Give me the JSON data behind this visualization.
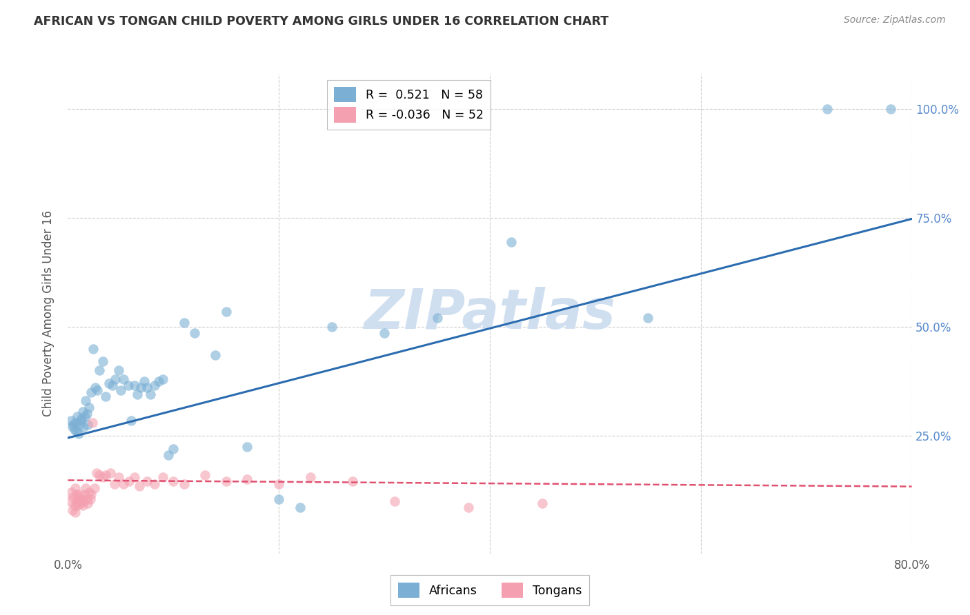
{
  "title": "AFRICAN VS TONGAN CHILD POVERTY AMONG GIRLS UNDER 16 CORRELATION CHART",
  "source": "Source: ZipAtlas.com",
  "ylabel": "Child Poverty Among Girls Under 16",
  "xlim": [
    0.0,
    0.8
  ],
  "ylim": [
    -0.02,
    1.08
  ],
  "african_R": 0.521,
  "african_N": 58,
  "tongan_R": -0.036,
  "tongan_N": 52,
  "african_color": "#7bafd4",
  "tongan_color": "#f4a0b0",
  "african_line_color": "#2b6cb0",
  "tongan_line_color": "#e05070",
  "watermark": "ZIPatlas",
  "watermark_color": "#d0dff0",
  "background_color": "#ffffff",
  "grid_color": "#cccccc",
  "title_color": "#333333",
  "label_color": "#555555",
  "right_tick_color": "#5588cc",
  "african_line_intercept": 0.245,
  "african_line_slope": 0.628,
  "tongan_line_intercept": 0.148,
  "tongan_line_slope": -0.018,
  "african_x": [
    0.003,
    0.004,
    0.005,
    0.006,
    0.007,
    0.008,
    0.009,
    0.01,
    0.011,
    0.012,
    0.013,
    0.014,
    0.015,
    0.016,
    0.017,
    0.018,
    0.019,
    0.02,
    0.022,
    0.024,
    0.026,
    0.028,
    0.03,
    0.033,
    0.036,
    0.039,
    0.042,
    0.045,
    0.048,
    0.05,
    0.053,
    0.057,
    0.06,
    0.063,
    0.066,
    0.069,
    0.072,
    0.075,
    0.078,
    0.082,
    0.086,
    0.09,
    0.095,
    0.1,
    0.11,
    0.12,
    0.14,
    0.15,
    0.17,
    0.2,
    0.22,
    0.25,
    0.3,
    0.35,
    0.42,
    0.55,
    0.72,
    0.78
  ],
  "african_y": [
    0.285,
    0.27,
    0.275,
    0.265,
    0.28,
    0.26,
    0.295,
    0.255,
    0.275,
    0.285,
    0.29,
    0.305,
    0.27,
    0.295,
    0.33,
    0.3,
    0.275,
    0.315,
    0.35,
    0.45,
    0.36,
    0.355,
    0.4,
    0.42,
    0.34,
    0.37,
    0.365,
    0.38,
    0.4,
    0.355,
    0.38,
    0.365,
    0.285,
    0.365,
    0.345,
    0.36,
    0.375,
    0.36,
    0.345,
    0.365,
    0.375,
    0.38,
    0.205,
    0.22,
    0.51,
    0.485,
    0.435,
    0.535,
    0.225,
    0.105,
    0.085,
    0.5,
    0.485,
    0.52,
    0.695,
    0.52,
    1.0,
    1.0
  ],
  "tongan_x": [
    0.002,
    0.003,
    0.004,
    0.005,
    0.006,
    0.007,
    0.007,
    0.008,
    0.008,
    0.009,
    0.009,
    0.01,
    0.01,
    0.011,
    0.012,
    0.013,
    0.014,
    0.015,
    0.016,
    0.017,
    0.018,
    0.019,
    0.02,
    0.021,
    0.022,
    0.023,
    0.025,
    0.027,
    0.03,
    0.033,
    0.036,
    0.04,
    0.044,
    0.048,
    0.053,
    0.058,
    0.063,
    0.068,
    0.075,
    0.082,
    0.09,
    0.1,
    0.11,
    0.13,
    0.15,
    0.17,
    0.2,
    0.23,
    0.27,
    0.31,
    0.38,
    0.45
  ],
  "tongan_y": [
    0.1,
    0.12,
    0.08,
    0.11,
    0.09,
    0.075,
    0.13,
    0.095,
    0.115,
    0.105,
    0.09,
    0.11,
    0.1,
    0.115,
    0.095,
    0.105,
    0.09,
    0.1,
    0.115,
    0.13,
    0.105,
    0.095,
    0.12,
    0.105,
    0.115,
    0.28,
    0.13,
    0.165,
    0.16,
    0.155,
    0.16,
    0.165,
    0.14,
    0.155,
    0.14,
    0.145,
    0.155,
    0.135,
    0.145,
    0.14,
    0.155,
    0.145,
    0.14,
    0.16,
    0.145,
    0.15,
    0.14,
    0.155,
    0.145,
    0.1,
    0.085,
    0.095
  ]
}
